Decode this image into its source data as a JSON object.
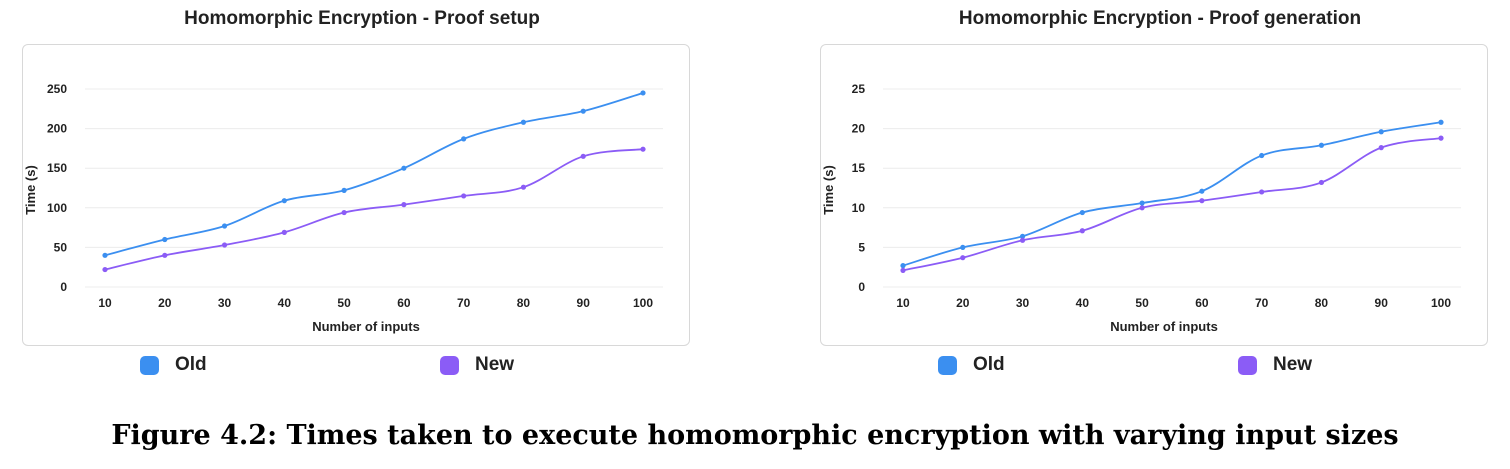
{
  "figure_caption": "Figure 4.2: Times taken to execute homomorphic encryption with varying input sizes",
  "chart_data": [
    {
      "type": "line",
      "title": "Homomorphic Encryption - Proof setup",
      "xlabel": "Number of inputs",
      "ylabel": "Time (s)",
      "x": [
        10,
        20,
        30,
        40,
        50,
        60,
        70,
        80,
        90,
        100
      ],
      "yticks": [
        0,
        50,
        100,
        150,
        200,
        250
      ],
      "ylim": [
        0,
        250
      ],
      "grid": "horizontal",
      "legend_position": "bottom",
      "series": [
        {
          "name": "Old",
          "color": "#3b8ff0",
          "values": [
            40,
            60,
            77,
            109,
            122,
            150,
            187,
            208,
            222,
            245
          ]
        },
        {
          "name": "New",
          "color": "#8b5cf6",
          "values": [
            22,
            40,
            53,
            69,
            94,
            104,
            115,
            126,
            165,
            174
          ]
        }
      ]
    },
    {
      "type": "line",
      "title": "Homomorphic Encryption - Proof generation",
      "xlabel": "Number of inputs",
      "ylabel": "Time (s)",
      "x": [
        10,
        20,
        30,
        40,
        50,
        60,
        70,
        80,
        90,
        100
      ],
      "yticks": [
        0,
        5,
        10,
        15,
        20,
        25
      ],
      "ylim": [
        0,
        25
      ],
      "grid": "horizontal",
      "legend_position": "bottom",
      "series": [
        {
          "name": "Old",
          "color": "#3b8ff0",
          "values": [
            2.7,
            5.0,
            6.4,
            9.4,
            10.6,
            12.1,
            16.6,
            17.9,
            19.6,
            20.8
          ]
        },
        {
          "name": "New",
          "color": "#8b5cf6",
          "values": [
            2.1,
            3.7,
            5.9,
            7.1,
            10.0,
            10.9,
            12.0,
            13.2,
            17.6,
            18.8
          ]
        }
      ]
    }
  ]
}
